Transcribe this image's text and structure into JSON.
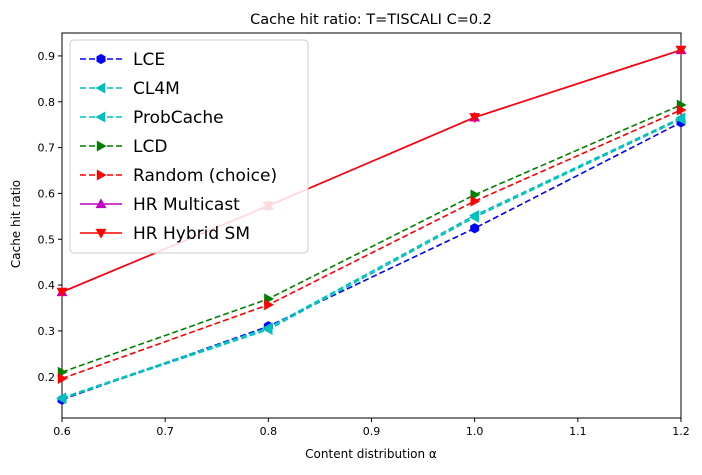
{
  "chart_data": {
    "type": "line",
    "title": "Cache hit ratio: T=TISCALI C=0.2",
    "xlabel": "Content distribution α",
    "ylabel": "Cache hit ratio",
    "xlim": [
      0.6,
      1.2
    ],
    "ylim": [
      0.11,
      0.95
    ],
    "xticks": [
      0.6,
      0.7,
      0.8,
      0.9,
      1.0,
      1.1,
      1.2
    ],
    "xtick_labels": [
      "0.6",
      "0.7",
      "0.8",
      "0.9",
      "1.0",
      "1.1",
      "1.2"
    ],
    "yticks": [
      0.2,
      0.3,
      0.4,
      0.5,
      0.6,
      0.7,
      0.8,
      0.9
    ],
    "ytick_labels": [
      "0.2",
      "0.3",
      "0.4",
      "0.5",
      "0.6",
      "0.7",
      "0.8",
      "0.9"
    ],
    "grid": false,
    "legend_position": "top-left",
    "x": [
      0.6,
      0.8,
      1.0,
      1.2
    ],
    "series": [
      {
        "name": "LCE",
        "values": [
          0.15,
          0.31,
          0.524,
          0.755
        ],
        "color": "#0000ff",
        "dash": true,
        "marker": "hexagon"
      },
      {
        "name": "CL4M",
        "values": [
          0.152,
          0.303,
          0.548,
          0.762
        ],
        "color": "#00bfbf",
        "dash": true,
        "marker": "triangle-left"
      },
      {
        "name": "ProbCache",
        "values": [
          0.154,
          0.307,
          0.552,
          0.765
        ],
        "color": "#00bfbf",
        "dash": true,
        "marker": "triangle-left"
      },
      {
        "name": "LCD",
        "values": [
          0.21,
          0.37,
          0.597,
          0.793
        ],
        "color": "#008000",
        "dash": true,
        "marker": "triangle-right"
      },
      {
        "name": "Random (choice)",
        "values": [
          0.196,
          0.357,
          0.583,
          0.782
        ],
        "color": "#ff0000",
        "dash": true,
        "marker": "triangle-right"
      },
      {
        "name": "HR Multicast",
        "values": [
          0.385,
          0.573,
          0.766,
          0.913
        ],
        "color": "#bf00bf",
        "dash": false,
        "marker": "triangle-up"
      },
      {
        "name": "HR Hybrid SM",
        "values": [
          0.385,
          0.573,
          0.766,
          0.913
        ],
        "color": "#ff0000",
        "dash": false,
        "marker": "triangle-down"
      }
    ]
  }
}
